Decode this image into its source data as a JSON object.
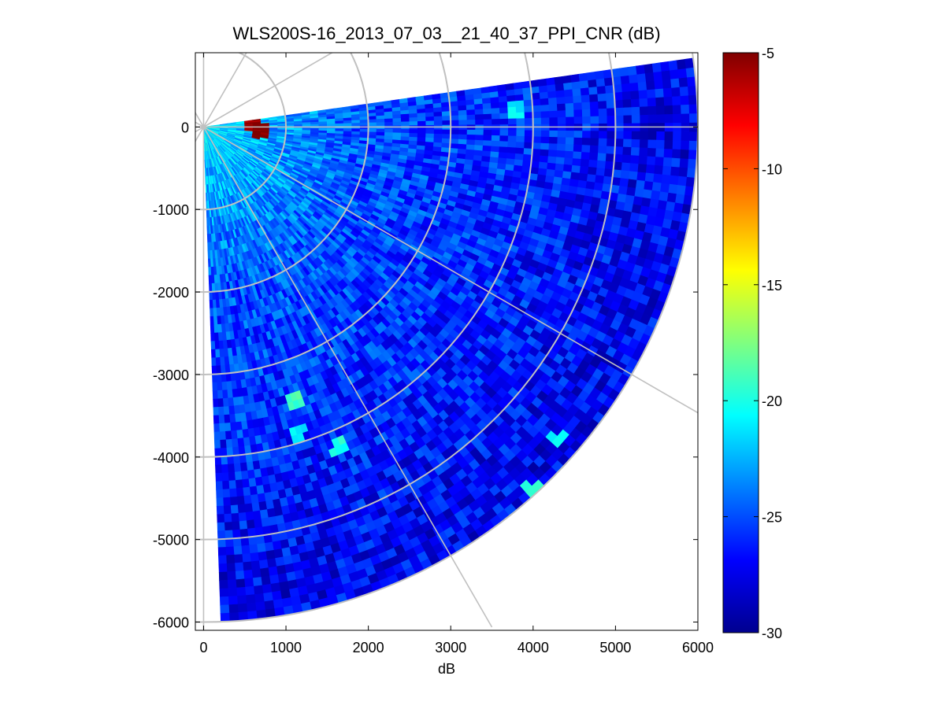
{
  "chart_data": {
    "type": "heatmap",
    "projection": "polar-sector",
    "title": "WLS200S-16_2013_07_03__21_40_37_PPI_CNR (dB)",
    "xlabel": "dB",
    "ylabel": "",
    "xlim": [
      -100,
      6000
    ],
    "ylim": [
      -6100,
      900
    ],
    "x_ticks": [
      0,
      1000,
      2000,
      3000,
      4000,
      5000,
      6000
    ],
    "y_ticks": [
      0,
      -1000,
      -2000,
      -3000,
      -4000,
      -5000,
      -6000
    ],
    "grid": true,
    "range_rings": [
      1000,
      2000,
      3000,
      4000,
      5000,
      6000
    ],
    "sector_azimuth_deg": [
      -88,
      8
    ],
    "max_range": 6000,
    "colorbar": {
      "range": [
        -30,
        -5
      ],
      "ticks": [
        -5,
        -10,
        -15,
        -20,
        -25,
        -30
      ],
      "colormap": "jet",
      "placement": "right"
    },
    "cnr_summary": {
      "near_range_dB": -21,
      "mid_range_dB": -25,
      "far_range_dB": -27,
      "hotspots": [
        {
          "x": 600,
          "y": 50,
          "value": -6
        },
        {
          "x": 680,
          "y": -40,
          "value": -5
        },
        {
          "x": 1100,
          "y": -3300,
          "value": -19
        },
        {
          "x": 1150,
          "y": -3700,
          "value": -21
        },
        {
          "x": 1650,
          "y": -3880,
          "value": -20
        },
        {
          "x": 4300,
          "y": -3800,
          "value": -21
        },
        {
          "x": 4000,
          "y": -4400,
          "value": -20
        },
        {
          "x": 3800,
          "y": 200,
          "value": -21
        }
      ]
    }
  }
}
